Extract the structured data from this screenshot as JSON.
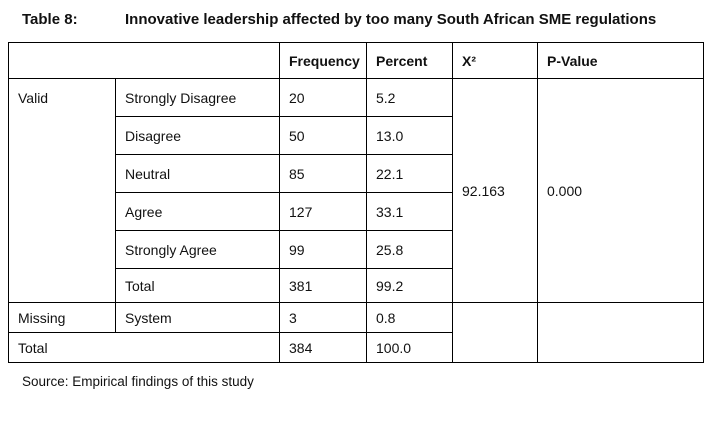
{
  "title": {
    "label": "Table 8:",
    "text": "Innovative leadership affected by too many South African SME regulations"
  },
  "table": {
    "headers": [
      "",
      "Frequency",
      "Percent",
      "X²",
      "P-Value"
    ],
    "groups": {
      "valid": {
        "label": "Valid",
        "rows": [
          {
            "item": "Strongly Disagree",
            "frequency": "20",
            "percent": "5.2"
          },
          {
            "item": "Disagree",
            "frequency": "50",
            "percent": "13.0"
          },
          {
            "item": "Neutral",
            "frequency": "85",
            "percent": "22.1"
          },
          {
            "item": "Agree",
            "frequency": "127",
            "percent": "33.1"
          },
          {
            "item": "Strongly Agree",
            "frequency": "99",
            "percent": "25.8"
          },
          {
            "item": "Total",
            "frequency": "381",
            "percent": "99.2"
          }
        ],
        "chi_square": "92.163",
        "p_value": "0.000"
      },
      "missing": {
        "label": "Missing",
        "item": "System",
        "frequency": "3",
        "percent": "0.8"
      },
      "total": {
        "label": "Total",
        "frequency": "384",
        "percent": "100.0"
      }
    }
  },
  "source": "Source: Empirical findings of this study"
}
